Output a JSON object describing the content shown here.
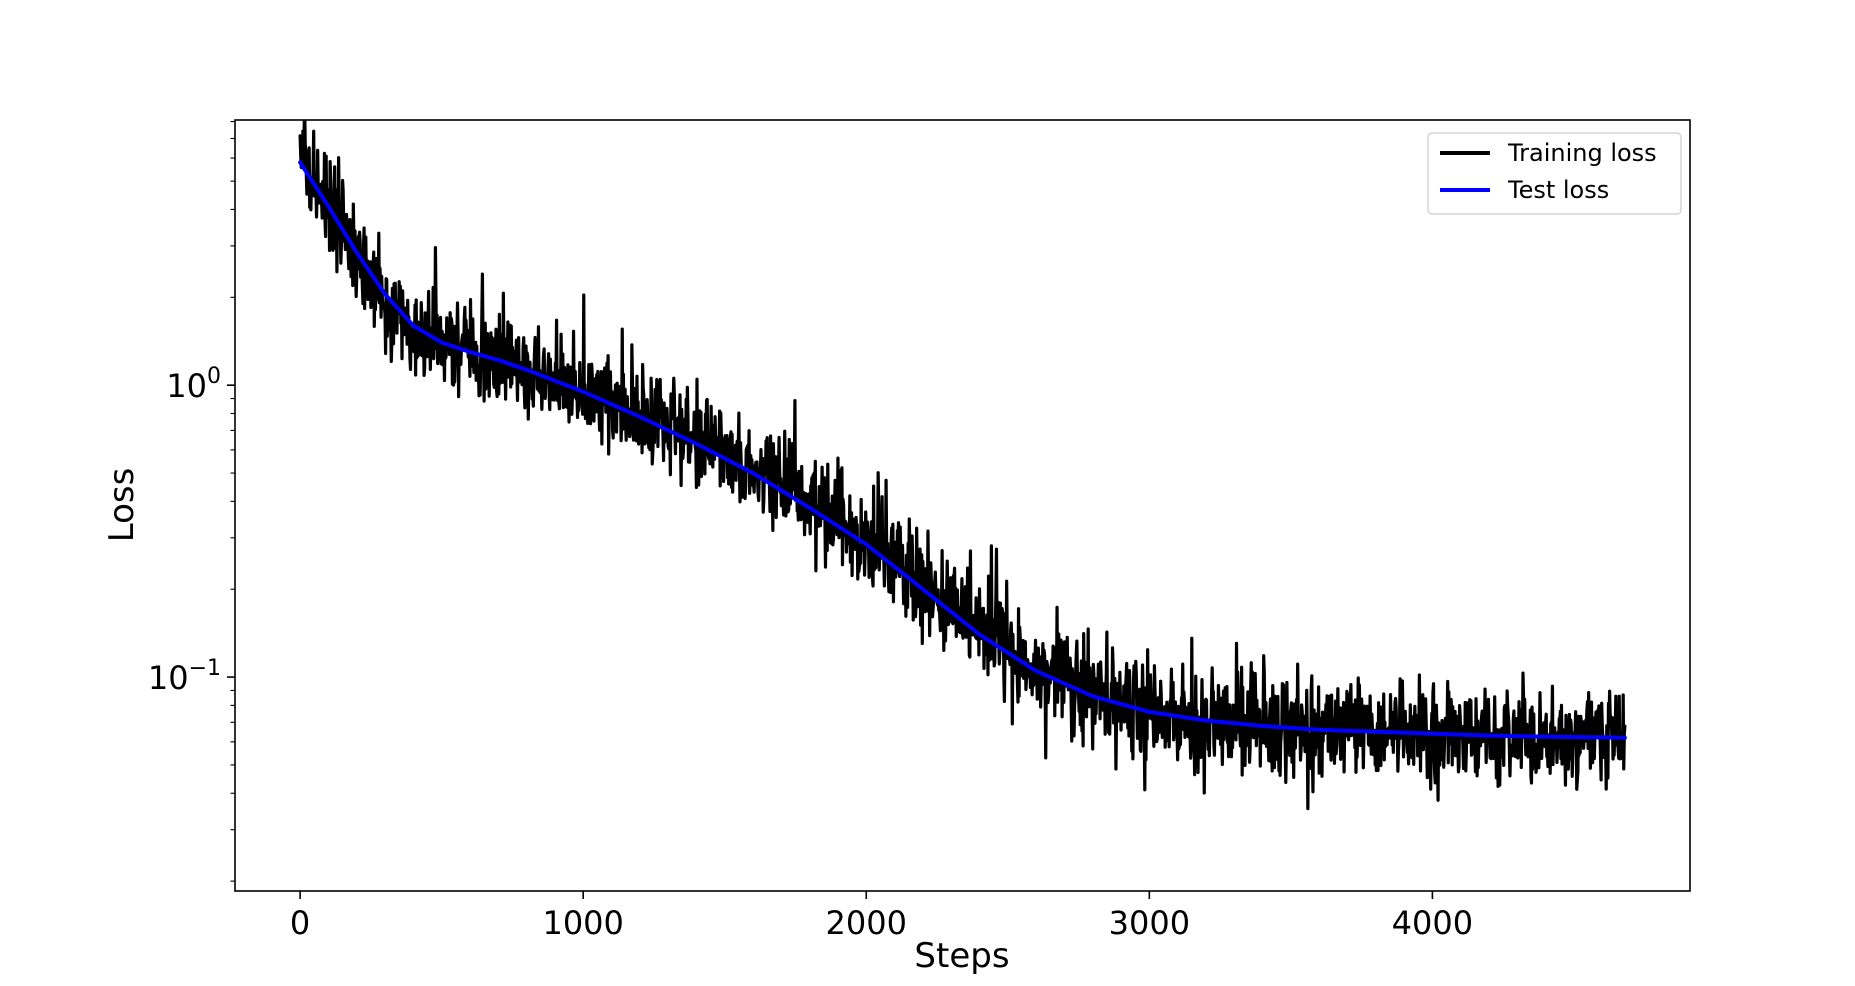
{
  "chart_data": {
    "type": "line",
    "title": "",
    "xlabel": "Steps",
    "ylabel": "Loss",
    "xlim": [
      -230,
      4910
    ],
    "ylim": [
      0.0185,
      8.1
    ],
    "yscale": "log",
    "grid": false,
    "legend_position": "top-right",
    "x_ticks": [
      0,
      1000,
      2000,
      3000,
      4000
    ],
    "x_tick_labels": [
      "0",
      "1000",
      "2000",
      "3000",
      "4000"
    ],
    "y_ticks": [
      {
        "value": 1,
        "base": "10",
        "exponent": "0"
      },
      {
        "value": 0.1,
        "base": "10",
        "exponent": "−1"
      }
    ],
    "series": [
      {
        "name": "Training loss",
        "color": "#000000",
        "style": "noisy",
        "noise_spread": 0.3,
        "x": [
          0,
          100,
          200,
          300,
          400,
          500,
          700,
          1000,
          1300,
          1600,
          1900,
          2200,
          2500,
          2800,
          3100,
          3400,
          3800,
          4200,
          4680
        ],
        "y": [
          6.0,
          4.0,
          2.8,
          2.0,
          1.6,
          1.4,
          1.2,
          0.95,
          0.72,
          0.52,
          0.35,
          0.21,
          0.125,
          0.085,
          0.07,
          0.066,
          0.064,
          0.063,
          0.062
        ]
      },
      {
        "name": "Test loss",
        "color": "#0000ff",
        "style": "smooth",
        "x": [
          0,
          100,
          200,
          300,
          400,
          500,
          600,
          700,
          800,
          1000,
          1200,
          1400,
          1600,
          1800,
          2000,
          2200,
          2400,
          2600,
          2800,
          3000,
          3200,
          3400,
          3600,
          3800,
          4000,
          4200,
          4400,
          4680
        ],
        "y": [
          5.8,
          4.1,
          2.85,
          2.05,
          1.6,
          1.4,
          1.3,
          1.22,
          1.13,
          0.95,
          0.78,
          0.63,
          0.5,
          0.38,
          0.285,
          0.2,
          0.14,
          0.105,
          0.086,
          0.076,
          0.071,
          0.068,
          0.066,
          0.065,
          0.064,
          0.063,
          0.0625,
          0.062
        ]
      }
    ]
  }
}
